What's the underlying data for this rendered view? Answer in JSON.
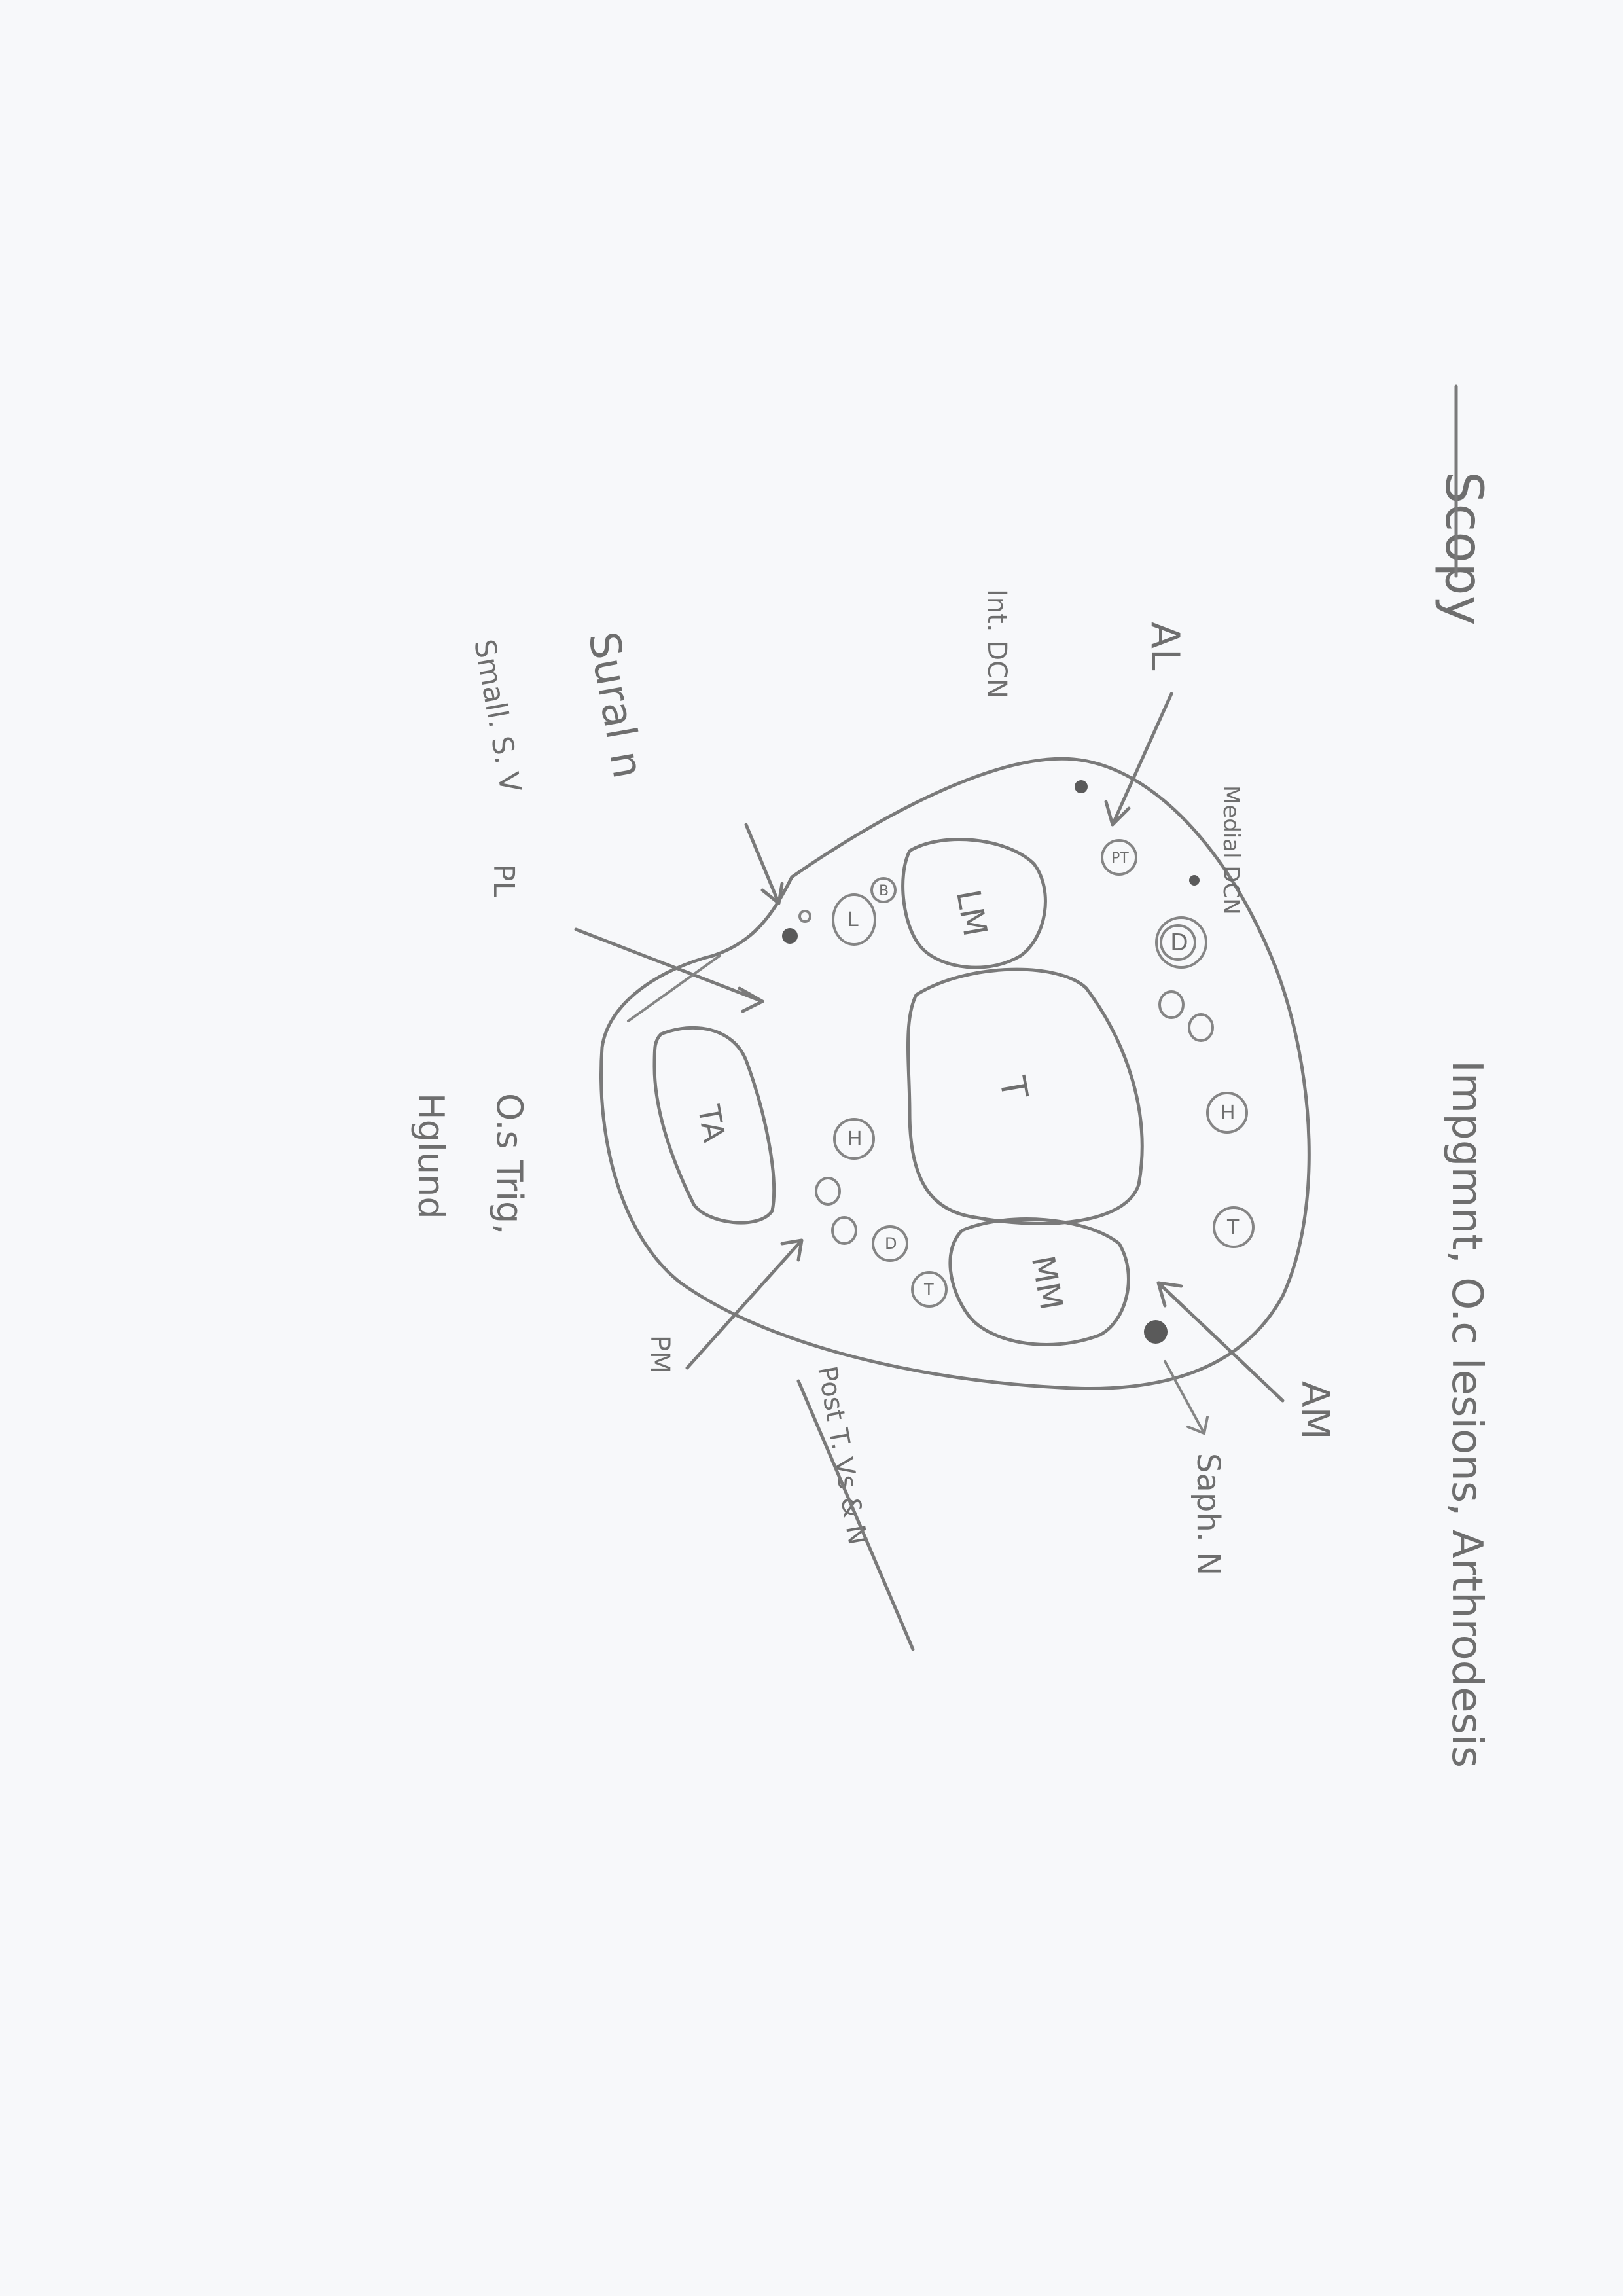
{
  "title": "Scopy",
  "labels": {
    "anterolateral": "AL",
    "anteromedial": "AM",
    "posterolateral": "PL",
    "posteromedial": "PM",
    "intermediate_dcn": "Int. DCN",
    "medial_dcn": "Medial DCN",
    "sural_n": "Sural n",
    "small_sv": "Small. S. V",
    "saph_n": "Saph. N",
    "post_t_vs_n": "Post T. Vs & N"
  },
  "structures": {
    "tibia": "T",
    "lateral_malleolus": "LM",
    "medial_malleolus": "MM",
    "tendo_achilles": "TA",
    "peroneus_tertius": "PT",
    "extensor_digitorum": "D",
    "extensor_hallucis": "H",
    "tibialis_anterior": "T",
    "peroneus_brevis": "B",
    "peroneus_longus": "L",
    "flexor_hallucis": "H",
    "flexor_digitorum": "D",
    "tibialis_posterior": "T"
  },
  "notes": {
    "indications": "Impgmnt, O.c lesions, Arthrodesis",
    "os_trigonum": "O.s Trig,",
    "haglund": "Hglund"
  }
}
